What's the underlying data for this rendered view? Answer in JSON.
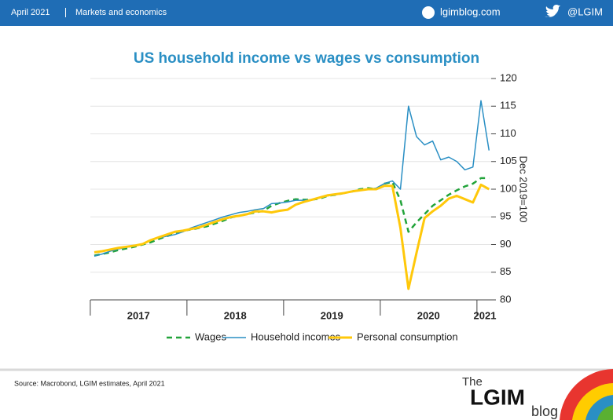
{
  "header": {
    "date": "April 2021",
    "section": "Markets and economics",
    "site": "lgimblog.com",
    "handle": "@LGIM"
  },
  "chart_data": {
    "type": "line",
    "title": "US household income vs wages vs consumption",
    "y_label": "Dec 2019=100",
    "categories": [
      null,
      null,
      null,
      null,
      null,
      "2017",
      null,
      null,
      null,
      null,
      null,
      null,
      null,
      null,
      null,
      null,
      null,
      "2018",
      null,
      null,
      null,
      null,
      null,
      null,
      null,
      null,
      null,
      null,
      null,
      "2019",
      null,
      null,
      null,
      null,
      null,
      null,
      null,
      null,
      null,
      null,
      null,
      "2020",
      null,
      null,
      null,
      null,
      null,
      null,
      "2021",
      null
    ],
    "series": [
      {
        "name": "Wages",
        "color": "#22a33a",
        "dash": true,
        "values": [
          88,
          88.3,
          88.6,
          89,
          89.3,
          89.6,
          90,
          90.4,
          91,
          91.5,
          92,
          92.5,
          92.7,
          93,
          93.3,
          93.8,
          94.3,
          94.9,
          95.2,
          95.5,
          95.8,
          96.1,
          97,
          97.5,
          97.9,
          98.2,
          98.1,
          98.1,
          98.3,
          98.8,
          99,
          99.3,
          99.6,
          100,
          100.2,
          100,
          101,
          101.3,
          98,
          92.3,
          94,
          95.5,
          97,
          98,
          99,
          99.8,
          100.5,
          101,
          102,
          102
        ]
      },
      {
        "name": "Household incomes",
        "color": "#2a8fc4",
        "dash": false,
        "values": [
          87.9,
          88.3,
          88.8,
          89.2,
          89.5,
          89.7,
          90.1,
          90.8,
          91.2,
          91.5,
          91.8,
          92.3,
          93,
          93.5,
          94,
          94.5,
          95,
          95.4,
          95.8,
          96,
          96.3,
          96.5,
          97.4,
          97.5,
          97.7,
          98,
          98,
          98.1,
          98.5,
          98.8,
          99,
          99.3,
          99.5,
          99.8,
          100,
          100.2,
          101,
          101.5,
          100,
          115,
          109.5,
          108,
          108.7,
          105.3,
          105.8,
          105,
          103.5,
          104,
          116,
          107
        ]
      },
      {
        "name": "Personal consumption",
        "color": "#ffc80a",
        "dash": false,
        "values": [
          88.6,
          88.8,
          89.1,
          89.4,
          89.6,
          89.8,
          90.1,
          90.8,
          91.3,
          91.8,
          92.3,
          92.5,
          92.8,
          93.1,
          93.6,
          94.1,
          94.6,
          95,
          95.2,
          95.5,
          96,
          96,
          95.8,
          96.1,
          96.3,
          97.2,
          97.7,
          98.1,
          98.5,
          98.9,
          99.1,
          99.3,
          99.6,
          99.8,
          100,
          100,
          100.6,
          100.6,
          93,
          82,
          88.5,
          94.8,
          96,
          97,
          98.3,
          98.8,
          98.2,
          97.6,
          100.8,
          100
        ]
      }
    ],
    "ylim": [
      80,
      120
    ],
    "yticks": [
      80,
      85,
      90,
      95,
      100,
      105,
      110,
      115,
      120
    ],
    "grid": true,
    "legend": "bottom"
  },
  "footer": {
    "source": "Source: Macrobond, LGIM estimates, April 2021",
    "logo_the": "The",
    "logo_name": "LGIM",
    "logo_blog": "blog"
  }
}
